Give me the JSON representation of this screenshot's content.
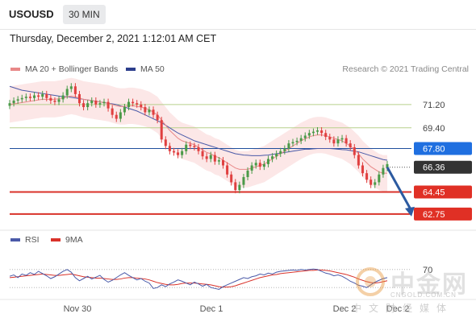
{
  "header": {
    "symbol": "USOUSD",
    "interval": "30 MIN",
    "datetime": "Thursday, December 2, 2021 1:12:01 AM CET"
  },
  "legend": {
    "ma20_label": "MA 20 + Bollinger Bands",
    "ma50_label": "MA 50",
    "copyright": "Research © 2021 Trading Central",
    "rsi_label": "RSI",
    "rsi_ma_label": "9MA"
  },
  "colors": {
    "ma20": "#e88888",
    "bollinger_fill": "#fbe1e1",
    "ma50": "#4a5aa8",
    "resistance_green": "#b7d08c",
    "pivot_blue": "#1f4e9c",
    "current_dark": "#333333",
    "support_red": "#d9322a",
    "up_candle": "#4a9a48",
    "down_candle": "#e04040",
    "arrow": "#2c5aa0",
    "rsi": "#4a5aa8",
    "rsi_ma": "#d9322a",
    "label_blue_bg": "#1f6fe0",
    "label_red_bg": "#e03025",
    "label_dark_bg": "#333333"
  },
  "watermark": {
    "cn": "中金网",
    "url": "CNGOLD.COM.CN",
    "sub": "中文财经媒体"
  },
  "chart_data": {
    "type": "candlestick",
    "title": "USOUSD",
    "x_tick_labels": [
      "Nov 30",
      "Dec 1",
      "Dec 2",
      "Dec 2"
    ],
    "ylim": [
      61.5,
      73.3
    ],
    "levels": [
      {
        "value": 71.2,
        "label": "71.20",
        "kind": "resistance"
      },
      {
        "value": 69.4,
        "label": "69.40",
        "kind": "resistance"
      },
      {
        "value": 67.8,
        "label": "67.80",
        "kind": "pivot"
      },
      {
        "value": 66.36,
        "label": "66.36",
        "kind": "current"
      },
      {
        "value": 64.45,
        "label": "64.45",
        "kind": "support"
      },
      {
        "value": 62.75,
        "label": "62.75",
        "kind": "support"
      }
    ],
    "forecast_arrow": {
      "from": 66.36,
      "to": 62.75
    },
    "close_series": [
      71.3,
      71.5,
      71.6,
      71.7,
      71.8,
      71.7,
      71.9,
      71.8,
      72.0,
      71.7,
      71.5,
      71.4,
      71.6,
      71.9,
      72.4,
      72.6,
      72.0,
      71.3,
      71.0,
      71.3,
      71.5,
      71.2,
      71.3,
      71.4,
      70.9,
      70.4,
      70.1,
      70.6,
      71.0,
      71.4,
      71.3,
      71.2,
      71.0,
      70.6,
      70.8,
      70.4,
      70.0,
      68.5,
      68.0,
      67.6,
      67.5,
      67.3,
      67.6,
      68.1,
      68.0,
      67.9,
      67.6,
      67.2,
      67.0,
      67.3,
      66.8,
      66.9,
      66.5,
      65.8,
      65.2,
      64.6,
      65.0,
      65.6,
      66.1,
      66.5,
      66.7,
      66.4,
      66.6,
      67.0,
      67.2,
      67.4,
      67.6,
      67.8,
      68.2,
      68.3,
      68.4,
      68.6,
      68.8,
      69.0,
      69.1,
      69.2,
      69.0,
      68.7,
      68.5,
      68.2,
      68.5,
      68.6,
      68.2,
      67.9,
      67.3,
      66.5,
      65.9,
      65.4,
      65.0,
      65.2,
      65.8,
      66.3,
      66.6
    ],
    "ma20_series": [
      71.2,
      71.25,
      71.3,
      71.35,
      71.4,
      71.45,
      71.5,
      71.55,
      71.6,
      71.6,
      71.6,
      71.6,
      71.65,
      71.7,
      71.8,
      71.85,
      71.8,
      71.7,
      71.6,
      71.55,
      71.5,
      71.45,
      71.4,
      71.35,
      71.3,
      71.2,
      71.1,
      71.05,
      71.05,
      71.1,
      71.1,
      71.05,
      71.0,
      70.9,
      70.8,
      70.6,
      70.4,
      70.0,
      69.6,
      69.2,
      68.9,
      68.6,
      68.4,
      68.3,
      68.2,
      68.1,
      67.9,
      67.7,
      67.5,
      67.4,
      67.2,
      67.1,
      66.9,
      66.7,
      66.5,
      66.3,
      66.2,
      66.2,
      66.2,
      66.3,
      66.4,
      66.5,
      66.6,
      66.8,
      67.0,
      67.2,
      67.4,
      67.6,
      67.8,
      68.0,
      68.2,
      68.4,
      68.55,
      68.7,
      68.8,
      68.85,
      68.85,
      68.8,
      68.7,
      68.6,
      68.5,
      68.4,
      68.2,
      68.0,
      67.7,
      67.4,
      67.0,
      66.7,
      66.4,
      66.2,
      66.0,
      65.9,
      65.9
    ],
    "ma50_series": [
      72.6,
      72.5,
      72.4,
      72.3,
      72.25,
      72.2,
      72.15,
      72.1,
      72.05,
      72.0,
      71.95,
      71.9,
      71.85,
      71.8,
      71.8,
      71.75,
      71.7,
      71.65,
      71.6,
      71.55,
      71.5,
      71.45,
      71.4,
      71.35,
      71.3,
      71.25,
      71.2,
      71.1,
      71.0,
      70.9,
      70.8,
      70.7,
      70.55,
      70.4,
      70.25,
      70.1,
      69.95,
      69.8,
      69.6,
      69.4,
      69.2,
      69.0,
      68.85,
      68.7,
      68.55,
      68.4,
      68.3,
      68.2,
      68.1,
      68.0,
      67.9,
      67.8,
      67.7,
      67.6,
      67.5,
      67.4,
      67.35,
      67.3,
      67.28,
      67.25,
      67.25,
      67.25,
      67.28,
      67.3,
      67.35,
      67.4,
      67.45,
      67.5,
      67.55,
      67.6,
      67.65,
      67.7,
      67.75,
      67.75,
      67.78,
      67.8,
      67.8,
      67.8,
      67.8,
      67.78,
      67.75,
      67.72,
      67.7,
      67.65,
      67.6,
      67.55,
      67.45,
      67.35,
      67.25,
      67.15,
      67.05,
      66.95,
      66.9
    ],
    "rsi": {
      "ylim": [
        0,
        100
      ],
      "tick_labels": [
        "70"
      ],
      "rsi_series": [
        55,
        58,
        52,
        60,
        57,
        63,
        59,
        66,
        61,
        56,
        50,
        54,
        60,
        66,
        70,
        64,
        52,
        45,
        50,
        55,
        49,
        53,
        57,
        48,
        42,
        46,
        52,
        58,
        63,
        57,
        52,
        47,
        50,
        44,
        40,
        28,
        30,
        36,
        32,
        38,
        42,
        47,
        44,
        40,
        36,
        42,
        38,
        33,
        37,
        30,
        28,
        26,
        32,
        36,
        40,
        44,
        48,
        52,
        50,
        54,
        56,
        60,
        58,
        62,
        60,
        64,
        66,
        67,
        68,
        69,
        68,
        70,
        69,
        70,
        71,
        70,
        66,
        62,
        60,
        56,
        58,
        55,
        50,
        44,
        40,
        35,
        33,
        30,
        36,
        42,
        46,
        50,
        52
      ],
      "ma_series": [
        52,
        53,
        54,
        55,
        56,
        57,
        58,
        59,
        60,
        59,
        58,
        57,
        57,
        58,
        59,
        60,
        58,
        56,
        54,
        53,
        52,
        51,
        51,
        50,
        49,
        48,
        48,
        49,
        51,
        52,
        52,
        51,
        50,
        49,
        47,
        44,
        41,
        39,
        37,
        36,
        36,
        37,
        39,
        40,
        40,
        40,
        39,
        38,
        37,
        36,
        34,
        32,
        31,
        31,
        32,
        34,
        37,
        40,
        43,
        46,
        49,
        52,
        54,
        56,
        58,
        59,
        61,
        62,
        63,
        64,
        65,
        66,
        67,
        68,
        68,
        69,
        69,
        68,
        67,
        65,
        63,
        61,
        59,
        56,
        53,
        49,
        46,
        43,
        41,
        40,
        41,
        43,
        45
      ]
    }
  }
}
